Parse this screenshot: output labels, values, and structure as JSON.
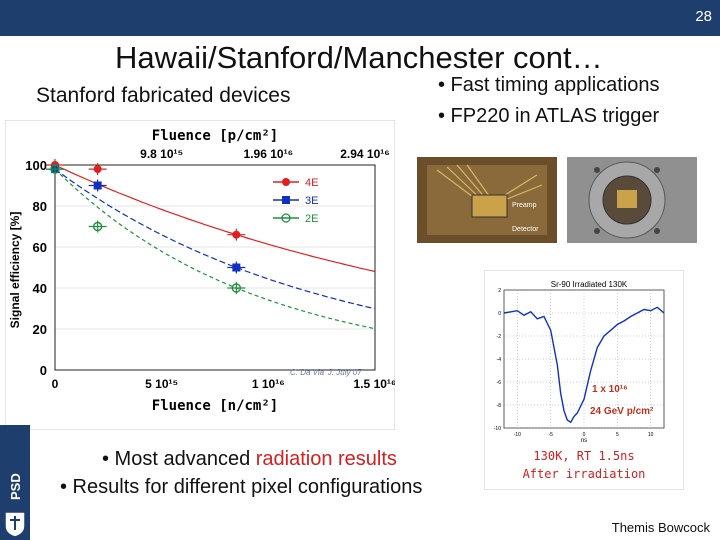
{
  "page_number": "28",
  "title": "Hawaii/Stanford/Manchester cont…",
  "subtitle": "Stanford fabricated devices",
  "bullets_top": [
    "• Fast timing applications",
    "• FP220 in ATLAS trigger"
  ],
  "bullets_bottom": {
    "line1_prefix": "• Most advanced ",
    "line1_highlight": "radiation results",
    "line2": "• Results for different pixel configurations"
  },
  "sidebar_label": "PSD",
  "author": "Themis Bowcock",
  "photo_labels": [
    "Preamp",
    "Detector"
  ],
  "colors": {
    "bar": "#1e3f6e",
    "highlight": "#d32020"
  },
  "chart_data": [
    {
      "type": "scatter",
      "title_top_axis": "Fluence [p/cm²]",
      "top_ticks": [
        "9.8 10¹⁵",
        "1.96 10¹⁶",
        "2.94 10¹⁶"
      ],
      "xlabel": "Fluence [n/cm²]",
      "ylabel": "Signal efficiency [%]",
      "x_ticks": [
        "0",
        "5 10¹⁵",
        "1 10¹⁶",
        "1.5 10¹⁶"
      ],
      "y_ticks": [
        "0",
        "20",
        "40",
        "60",
        "80",
        "100"
      ],
      "xlim": [
        0,
        15
      ],
      "ylim": [
        0,
        100
      ],
      "annotation": "C. Da Via' J. July 07",
      "series": [
        {
          "name": "4E",
          "color": "#e02020",
          "marker": "circle",
          "x": [
            0,
            2,
            8.5
          ],
          "y": [
            100,
            98,
            66
          ]
        },
        {
          "name": "3E",
          "color": "#1030c0",
          "marker": "square",
          "x": [
            0,
            2,
            8.5
          ],
          "y": [
            98,
            90,
            50
          ]
        },
        {
          "name": "2E",
          "color": "#209040",
          "marker": "circle-open",
          "x": [
            0,
            2,
            8.5
          ],
          "y": [
            98,
            70,
            40
          ]
        }
      ]
    },
    {
      "type": "line",
      "title": "Sr-90 Irradiated 130K",
      "xlabel": "ns",
      "x_ticks": [
        "-10",
        "-5",
        "0",
        "5",
        "10"
      ],
      "y_ticks": [
        "2",
        "0",
        "-2",
        "-4",
        "-6",
        "-8",
        "-10"
      ],
      "xlim": [
        -12,
        12
      ],
      "ylim": [
        -10,
        2
      ],
      "annotation_fluence": "1 x 10¹⁶",
      "annotation_energy": "24 GeV p/cm²",
      "caption_line1": "130K, RT 1.5ns",
      "caption_line2": "After irradiation",
      "series": [
        {
          "color": "#1030c0",
          "x": [
            -12,
            -10,
            -9,
            -8,
            -7,
            -6,
            -5,
            -4,
            -3.5,
            -3,
            -2.5,
            -2,
            -1.5,
            -1,
            0,
            1,
            2,
            3,
            4,
            5,
            6,
            7,
            8,
            9,
            10,
            11,
            12
          ],
          "y": [
            0,
            0.2,
            -0.2,
            0.1,
            -0.5,
            -0.3,
            -1.5,
            -4.5,
            -7,
            -8.5,
            -9.3,
            -9.5,
            -9,
            -8.7,
            -7.5,
            -5,
            -3,
            -2,
            -1.5,
            -1,
            -0.7,
            -0.3,
            0,
            0.3,
            0.2,
            0.5,
            0
          ]
        }
      ]
    }
  ]
}
